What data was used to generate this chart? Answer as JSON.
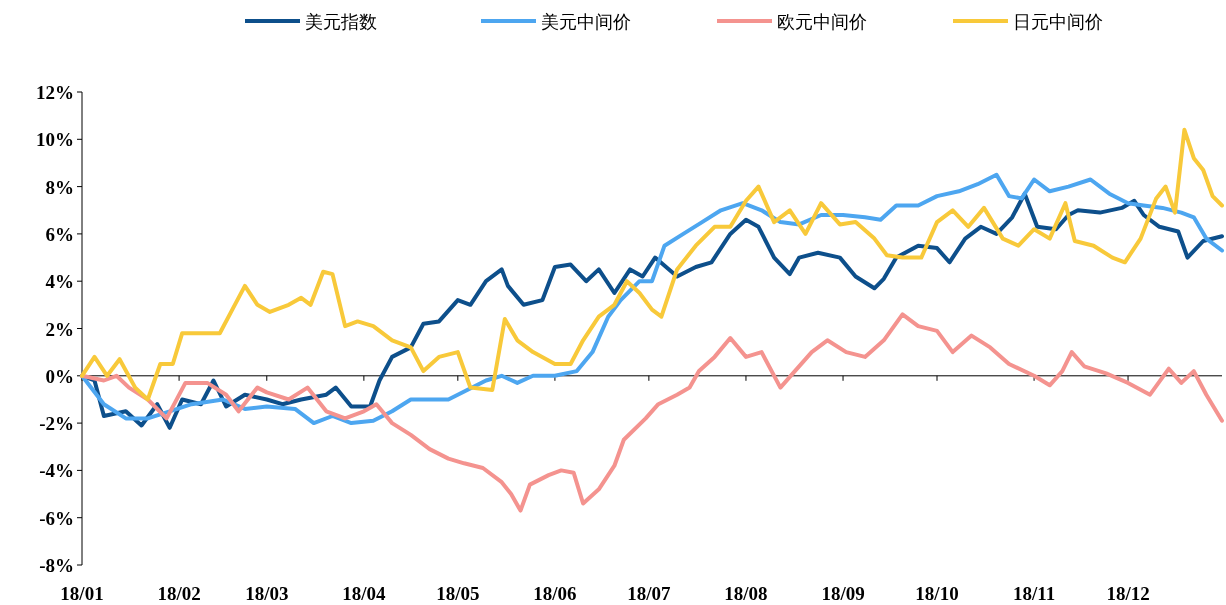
{
  "chart_data": {
    "type": "line",
    "legend": "top",
    "marker": "none",
    "line_style": "solid",
    "xlim": [
      "--01-01",
      "--12-31"
    ],
    "xticks": [
      {
        "value": "--01-01",
        "label": "18/01"
      },
      {
        "value": "--02-01",
        "label": "18/02"
      },
      {
        "value": "--03-01",
        "label": "18/03"
      },
      {
        "value": "--04-01",
        "label": "18/04"
      },
      {
        "value": "--05-01",
        "label": "18/05"
      },
      {
        "value": "--06-01",
        "label": "18/06"
      },
      {
        "value": "--07-01",
        "label": "18/07"
      },
      {
        "value": "--08-01",
        "label": "18/08"
      },
      {
        "value": "--09-01",
        "label": "18/09"
      },
      {
        "value": "--10-01",
        "label": "18/10"
      },
      {
        "value": "--11-01",
        "label": "18/11"
      },
      {
        "value": "--12-01",
        "label": "18/12"
      }
    ],
    "ylim": [
      -8,
      12
    ],
    "yticks": [
      {
        "value": -8,
        "label": "-8%"
      },
      {
        "value": -6,
        "label": "-6%"
      },
      {
        "value": -4,
        "label": "-4%"
      },
      {
        "value": -2,
        "label": "-2%"
      },
      {
        "value": 0,
        "label": "0%"
      },
      {
        "value": 2,
        "label": "2%"
      },
      {
        "value": 4,
        "label": "4%"
      },
      {
        "value": 6,
        "label": "6%"
      },
      {
        "value": 8,
        "label": "8%"
      },
      {
        "value": 10,
        "label": "10%"
      },
      {
        "value": 12,
        "label": "12%"
      }
    ],
    "series": [
      {
        "name": "美元指数",
        "color": "#0d4f8b",
        "x": [
          "--01-01",
          "--01-05",
          "--01-08",
          "--01-15",
          "--01-20",
          "--01-25",
          "--01-29",
          "--02-02",
          "--02-08",
          "--02-12",
          "--02-16",
          "--02-22",
          "--03-01",
          "--03-06",
          "--03-12",
          "--03-20",
          "--03-23",
          "--03-28",
          "--04-03",
          "--04-06",
          "--04-10",
          "--04-16",
          "--04-20",
          "--04-25",
          "--05-01",
          "--05-05",
          "--05-10",
          "--05-15",
          "--05-17",
          "--05-22",
          "--05-28",
          "--06-01",
          "--06-06",
          "--06-11",
          "--06-15",
          "--06-20",
          "--06-25",
          "--06-29",
          "--07-03",
          "--07-10",
          "--07-16",
          "--07-21",
          "--07-27",
          "--08-01",
          "--08-05",
          "--08-10",
          "--08-15",
          "--08-18",
          "--08-24",
          "--08-31",
          "--09-05",
          "--09-11",
          "--09-14",
          "--09-18",
          "--09-25",
          "--10-01",
          "--10-05",
          "--10-10",
          "--10-15",
          "--10-20",
          "--10-25",
          "--10-29",
          "--11-02",
          "--11-08",
          "--11-12",
          "--11-15",
          "--11-22",
          "--11-29",
          "--12-03",
          "--12-06",
          "--12-11",
          "--12-17",
          "--12-20",
          "--12-25",
          "--12-31"
        ],
        "values": [
          0,
          -0.2,
          -1.7,
          -1.5,
          -2.1,
          -1.2,
          -2.2,
          -1.0,
          -1.2,
          -0.2,
          -1.3,
          -0.8,
          -1.0,
          -1.2,
          -1.0,
          -0.8,
          -0.5,
          -1.3,
          -1.3,
          -0.2,
          0.8,
          1.2,
          2.2,
          2.3,
          3.2,
          3.0,
          4.0,
          4.5,
          3.8,
          3.0,
          3.2,
          4.6,
          4.7,
          4.0,
          4.5,
          3.5,
          4.5,
          4.2,
          5.0,
          4.2,
          4.6,
          4.8,
          6.0,
          6.6,
          6.3,
          5.0,
          4.3,
          5.0,
          5.2,
          5.0,
          4.2,
          3.7,
          4.1,
          5.0,
          5.5,
          5.4,
          4.8,
          5.8,
          6.3,
          6.0,
          6.7,
          7.7,
          6.3,
          6.2,
          6.8,
          7.0,
          6.9,
          7.1,
          7.4,
          6.8,
          6.3,
          6.1,
          5.0,
          5.7,
          5.9
        ]
      },
      {
        "name": "美元中间价",
        "color": "#4da6f0",
        "x": [
          "--01-01",
          "--01-08",
          "--01-15",
          "--01-22",
          "--01-29",
          "--02-05",
          "--02-15",
          "--02-22",
          "--03-01",
          "--03-10",
          "--03-16",
          "--03-22",
          "--03-28",
          "--04-04",
          "--04-10",
          "--04-16",
          "--04-22",
          "--04-28",
          "--05-04",
          "--05-10",
          "--05-15",
          "--05-20",
          "--05-25",
          "--06-01",
          "--06-08",
          "--06-13",
          "--06-18",
          "--06-22",
          "--06-28",
          "--07-02",
          "--07-06",
          "--07-12",
          "--07-18",
          "--07-24",
          "--07-31",
          "--08-06",
          "--08-12",
          "--08-18",
          "--08-25",
          "--09-01",
          "--09-08",
          "--09-13",
          "--09-18",
          "--09-25",
          "--10-01",
          "--10-08",
          "--10-14",
          "--10-20",
          "--10-24",
          "--10-28",
          "--11-01",
          "--11-06",
          "--11-12",
          "--11-19",
          "--11-25",
          "--12-01",
          "--12-06",
          "--12-12",
          "--12-18",
          "--12-22",
          "--12-26",
          "--12-31"
        ],
        "values": [
          0,
          -1.2,
          -1.8,
          -1.8,
          -1.5,
          -1.2,
          -1.0,
          -1.4,
          -1.3,
          -1.4,
          -2.0,
          -1.7,
          -2.0,
          -1.9,
          -1.5,
          -1.0,
          -1.0,
          -1.0,
          -0.6,
          -0.2,
          0.0,
          -0.3,
          0.0,
          0.0,
          0.2,
          1.0,
          2.5,
          3.2,
          4.0,
          4.0,
          5.5,
          6.0,
          6.5,
          7.0,
          7.3,
          7.0,
          6.5,
          6.4,
          6.8,
          6.8,
          6.7,
          6.6,
          7.2,
          7.2,
          7.6,
          7.8,
          8.1,
          8.5,
          7.6,
          7.5,
          8.3,
          7.8,
          8.0,
          8.3,
          7.7,
          7.3,
          7.2,
          7.1,
          6.9,
          6.7,
          5.8,
          5.3
        ]
      },
      {
        "name": "欧元中间价",
        "color": "#f4938f",
        "x": [
          "--01-01",
          "--01-08",
          "--01-12",
          "--01-16",
          "--01-22",
          "--01-28",
          "--02-03",
          "--02-10",
          "--02-16",
          "--02-20",
          "--02-26",
          "--03-01",
          "--03-08",
          "--03-14",
          "--03-20",
          "--03-26",
          "--04-01",
          "--04-05",
          "--04-10",
          "--04-16",
          "--04-22",
          "--04-28",
          "--05-03",
          "--05-09",
          "--05-15",
          "--05-18",
          "--05-21",
          "--05-24",
          "--05-30",
          "--06-03",
          "--06-07",
          "--06-10",
          "--06-15",
          "--06-20",
          "--06-23",
          "--06-30",
          "--07-04",
          "--07-10",
          "--07-14",
          "--07-17",
          "--07-22",
          "--07-27",
          "--08-01",
          "--08-06",
          "--08-12",
          "--08-16",
          "--08-22",
          "--08-27",
          "--09-02",
          "--09-08",
          "--09-14",
          "--09-20",
          "--09-25",
          "--10-01",
          "--10-06",
          "--10-12",
          "--10-18",
          "--10-24",
          "--11-01",
          "--11-06",
          "--11-10",
          "--11-13",
          "--11-17",
          "--11-24",
          "--12-01",
          "--12-08",
          "--12-14",
          "--12-18",
          "--12-22",
          "--12-26",
          "--12-31"
        ],
        "values": [
          0,
          -0.2,
          0,
          -0.5,
          -1.0,
          -1.8,
          -0.3,
          -0.3,
          -0.8,
          -1.5,
          -0.5,
          -0.7,
          -1.0,
          -0.5,
          -1.5,
          -1.8,
          -1.5,
          -1.2,
          -2.0,
          -2.5,
          -3.1,
          -3.5,
          -3.7,
          -3.9,
          -4.5,
          -5.0,
          -5.7,
          -4.6,
          -4.2,
          -4.0,
          -4.1,
          -5.4,
          -4.8,
          -3.8,
          -2.7,
          -1.8,
          -1.2,
          -0.8,
          -0.5,
          0.2,
          0.8,
          1.6,
          0.8,
          1.0,
          -0.5,
          0.1,
          1.0,
          1.5,
          1.0,
          0.8,
          1.5,
          2.6,
          2.1,
          1.9,
          1.0,
          1.7,
          1.2,
          0.5,
          0.0,
          -0.4,
          0.2,
          1.0,
          0.4,
          0.1,
          -0.3,
          -0.8,
          0.3,
          -0.3,
          0.2,
          -0.8,
          -1.9
        ]
      },
      {
        "name": "日元中间价",
        "color": "#f8c93a",
        "x": [
          "--01-01",
          "--01-05",
          "--01-09",
          "--01-13",
          "--01-18",
          "--01-22",
          "--01-26",
          "--01-30",
          "--02-02",
          "--02-10",
          "--02-14",
          "--02-18",
          "--02-22",
          "--02-26",
          "--03-02",
          "--03-08",
          "--03-12",
          "--03-15",
          "--03-19",
          "--03-22",
          "--03-26",
          "--03-30",
          "--04-04",
          "--04-10",
          "--04-16",
          "--04-20",
          "--04-25",
          "--05-01",
          "--05-05",
          "--05-12",
          "--05-16",
          "--05-20",
          "--05-25",
          "--06-01",
          "--06-06",
          "--06-10",
          "--06-15",
          "--06-20",
          "--06-24",
          "--06-28",
          "--07-02",
          "--07-05",
          "--07-10",
          "--07-16",
          "--07-22",
          "--07-27",
          "--08-01",
          "--08-05",
          "--08-10",
          "--08-15",
          "--08-20",
          "--08-25",
          "--08-31",
          "--09-05",
          "--09-11",
          "--09-15",
          "--09-20",
          "--09-26",
          "--10-01",
          "--10-06",
          "--10-11",
          "--10-16",
          "--10-22",
          "--10-27",
          "--11-01",
          "--11-06",
          "--11-11",
          "--11-14",
          "--11-20",
          "--11-26",
          "--11-30",
          "--12-05",
          "--12-10",
          "--12-13",
          "--12-16",
          "--12-19",
          "--12-22",
          "--12-25",
          "--12-28",
          "--12-31"
        ],
        "values": [
          0,
          0.8,
          0.0,
          0.7,
          -0.5,
          -1.0,
          0.5,
          0.5,
          1.8,
          1.8,
          1.8,
          2.8,
          3.8,
          3.0,
          2.7,
          3.0,
          3.3,
          3.0,
          4.4,
          4.3,
          2.1,
          2.3,
          2.1,
          1.5,
          1.2,
          0.2,
          0.8,
          1.0,
          -0.5,
          -0.6,
          2.4,
          1.5,
          1.0,
          0.5,
          0.5,
          1.5,
          2.5,
          3.0,
          4.0,
          3.5,
          2.8,
          2.5,
          4.5,
          5.5,
          6.3,
          6.3,
          7.4,
          8.0,
          6.5,
          7.0,
          6.0,
          7.3,
          6.4,
          6.5,
          5.8,
          5.1,
          5.0,
          5.0,
          6.5,
          7.0,
          6.3,
          7.1,
          5.8,
          5.5,
          6.2,
          5.8,
          7.3,
          5.7,
          5.5,
          5.0,
          4.8,
          5.8,
          7.5,
          8.0,
          6.9,
          10.4,
          9.2,
          8.7,
          7.6,
          7.2
        ]
      }
    ]
  }
}
